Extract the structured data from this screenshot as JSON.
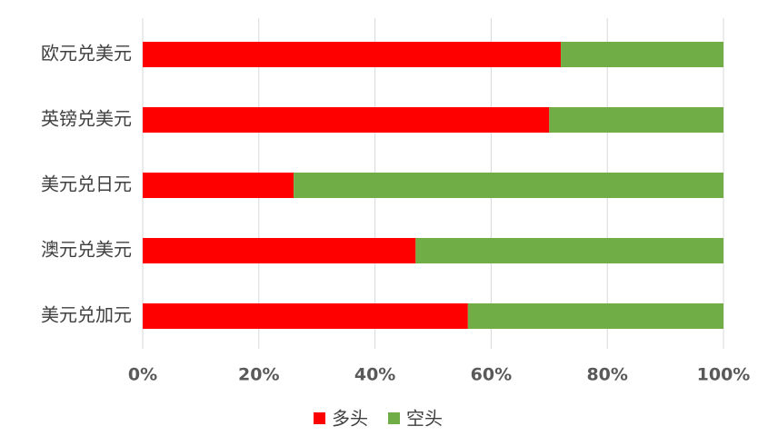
{
  "chart_data": {
    "type": "stacked-barh",
    "categories": [
      "欧元兑美元",
      "英镑兑美元",
      "美元兑日元",
      "澳元兑美元",
      "美元兑加元"
    ],
    "series": [
      {
        "name": "多头",
        "color": "#ff0000",
        "values": [
          72,
          70,
          26,
          47,
          56
        ]
      },
      {
        "name": "空头",
        "color": "#70ad47",
        "values": [
          28,
          30,
          74,
          53,
          44
        ]
      }
    ],
    "xlim": [
      0,
      100
    ],
    "xticks": [
      {
        "value": 0,
        "label": "0%"
      },
      {
        "value": 20,
        "label": "20%"
      },
      {
        "value": 40,
        "label": "40%"
      },
      {
        "value": 60,
        "label": "60%"
      },
      {
        "value": 80,
        "label": "80%"
      },
      {
        "value": 100,
        "label": "100%"
      }
    ],
    "grid": true,
    "legend": "bottom"
  }
}
